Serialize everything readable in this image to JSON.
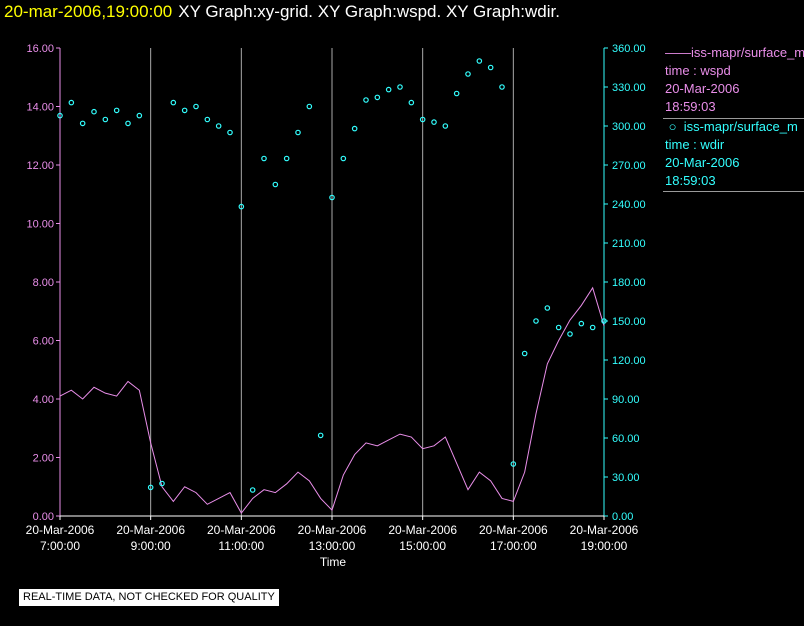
{
  "header": {
    "timestamp": "20-mar-2006,19:00:00",
    "graphs": "XY Graph:xy-grid.  XY Graph:wspd.  XY Graph:wdir."
  },
  "legend": {
    "series1": {
      "name": "iss-mapr/surface_m",
      "field": "time : wspd",
      "date": "20-Mar-2006",
      "time": "18:59:03"
    },
    "series2": {
      "name": "iss-mapr/surface_m",
      "field": "time : wdir",
      "date": "20-Mar-2006",
      "time": "18:59:03"
    }
  },
  "footer": {
    "qc_notice": "REAL-TIME DATA, NOT CHECKED FOR QUALITY"
  },
  "colors": {
    "wspd": "#e98ee9",
    "wdir": "#33ffff",
    "title_time": "#ffff00",
    "grid": "#aaaaaa"
  },
  "chart_data": {
    "type": "line",
    "xlabel": "Time",
    "x_ticks": [
      {
        "date": "20-Mar-2006",
        "time": "7:00:00"
      },
      {
        "date": "20-Mar-2006",
        "time": "9:00:00"
      },
      {
        "date": "20-Mar-2006",
        "time": "11:00:00"
      },
      {
        "date": "20-Mar-2006",
        "time": "13:00:00"
      },
      {
        "date": "20-Mar-2006",
        "time": "15:00:00"
      },
      {
        "date": "20-Mar-2006",
        "time": "17:00:00"
      },
      {
        "date": "20-Mar-2006",
        "time": "19:00:00"
      }
    ],
    "y_left": {
      "range": [
        0,
        16
      ],
      "ticks": [
        "0.00",
        "2.00",
        "4.00",
        "6.00",
        "8.00",
        "10.00",
        "12.00",
        "14.00",
        "16.00"
      ]
    },
    "y_right": {
      "range": [
        0,
        360
      ],
      "ticks": [
        "0.00",
        "30.00",
        "60.00",
        "90.00",
        "120.00",
        "150.00",
        "180.00",
        "210.00",
        "240.00",
        "270.00",
        "300.00",
        "330.00",
        "360.00"
      ]
    },
    "series": [
      {
        "name": "wspd",
        "axis": "left",
        "style": "line",
        "points": [
          [
            "07:00",
            4.1
          ],
          [
            "07:15",
            4.3
          ],
          [
            "07:30",
            4.0
          ],
          [
            "07:45",
            4.4
          ],
          [
            "08:00",
            4.2
          ],
          [
            "08:15",
            4.1
          ],
          [
            "08:30",
            4.6
          ],
          [
            "08:45",
            4.3
          ],
          [
            "09:00",
            2.5
          ],
          [
            "09:15",
            1.0
          ],
          [
            "09:30",
            0.5
          ],
          [
            "09:45",
            1.0
          ],
          [
            "10:00",
            0.8
          ],
          [
            "10:15",
            0.4
          ],
          [
            "10:30",
            0.6
          ],
          [
            "10:45",
            0.8
          ],
          [
            "11:00",
            0.1
          ],
          [
            "11:15",
            0.6
          ],
          [
            "11:30",
            0.9
          ],
          [
            "11:45",
            0.8
          ],
          [
            "12:00",
            1.1
          ],
          [
            "12:15",
            1.5
          ],
          [
            "12:30",
            1.2
          ],
          [
            "12:45",
            0.6
          ],
          [
            "13:00",
            0.2
          ],
          [
            "13:15",
            1.4
          ],
          [
            "13:30",
            2.1
          ],
          [
            "13:45",
            2.5
          ],
          [
            "14:00",
            2.4
          ],
          [
            "14:15",
            2.6
          ],
          [
            "14:30",
            2.8
          ],
          [
            "14:45",
            2.7
          ],
          [
            "15:00",
            2.3
          ],
          [
            "15:15",
            2.4
          ],
          [
            "15:30",
            2.7
          ],
          [
            "15:45",
            1.8
          ],
          [
            "16:00",
            0.9
          ],
          [
            "16:15",
            1.5
          ],
          [
            "16:30",
            1.2
          ],
          [
            "16:45",
            0.6
          ],
          [
            "17:00",
            0.5
          ],
          [
            "17:15",
            1.5
          ],
          [
            "17:30",
            3.5
          ],
          [
            "17:45",
            5.2
          ],
          [
            "18:00",
            6.0
          ],
          [
            "18:15",
            6.7
          ],
          [
            "18:30",
            7.2
          ],
          [
            "18:45",
            7.8
          ],
          [
            "19:00",
            6.5
          ]
        ]
      },
      {
        "name": "wdir",
        "axis": "right",
        "style": "markers",
        "points": [
          [
            "07:00",
            308
          ],
          [
            "07:15",
            318
          ],
          [
            "07:30",
            302
          ],
          [
            "07:45",
            311
          ],
          [
            "08:00",
            305
          ],
          [
            "08:15",
            312
          ],
          [
            "08:30",
            302
          ],
          [
            "08:45",
            308
          ],
          [
            "09:00",
            22
          ],
          [
            "09:15",
            25
          ],
          [
            "09:30",
            318
          ],
          [
            "09:45",
            312
          ],
          [
            "10:00",
            315
          ],
          [
            "10:15",
            305
          ],
          [
            "10:30",
            300
          ],
          [
            "10:45",
            295
          ],
          [
            "11:00",
            238
          ],
          [
            "11:15",
            20
          ],
          [
            "11:30",
            275
          ],
          [
            "11:45",
            255
          ],
          [
            "12:00",
            275
          ],
          [
            "12:15",
            295
          ],
          [
            "12:30",
            315
          ],
          [
            "12:45",
            62
          ],
          [
            "13:00",
            245
          ],
          [
            "13:15",
            275
          ],
          [
            "13:30",
            298
          ],
          [
            "13:45",
            320
          ],
          [
            "14:00",
            322
          ],
          [
            "14:15",
            328
          ],
          [
            "14:30",
            330
          ],
          [
            "14:45",
            318
          ],
          [
            "15:00",
            305
          ],
          [
            "15:15",
            303
          ],
          [
            "15:30",
            300
          ],
          [
            "15:45",
            325
          ],
          [
            "16:00",
            340
          ],
          [
            "16:15",
            350
          ],
          [
            "16:30",
            345
          ],
          [
            "16:45",
            330
          ],
          [
            "17:00",
            40
          ],
          [
            "17:15",
            125
          ],
          [
            "17:30",
            150
          ],
          [
            "17:45",
            160
          ],
          [
            "18:00",
            145
          ],
          [
            "18:15",
            140
          ],
          [
            "18:30",
            148
          ],
          [
            "18:45",
            145
          ],
          [
            "19:00",
            150
          ]
        ]
      }
    ]
  }
}
